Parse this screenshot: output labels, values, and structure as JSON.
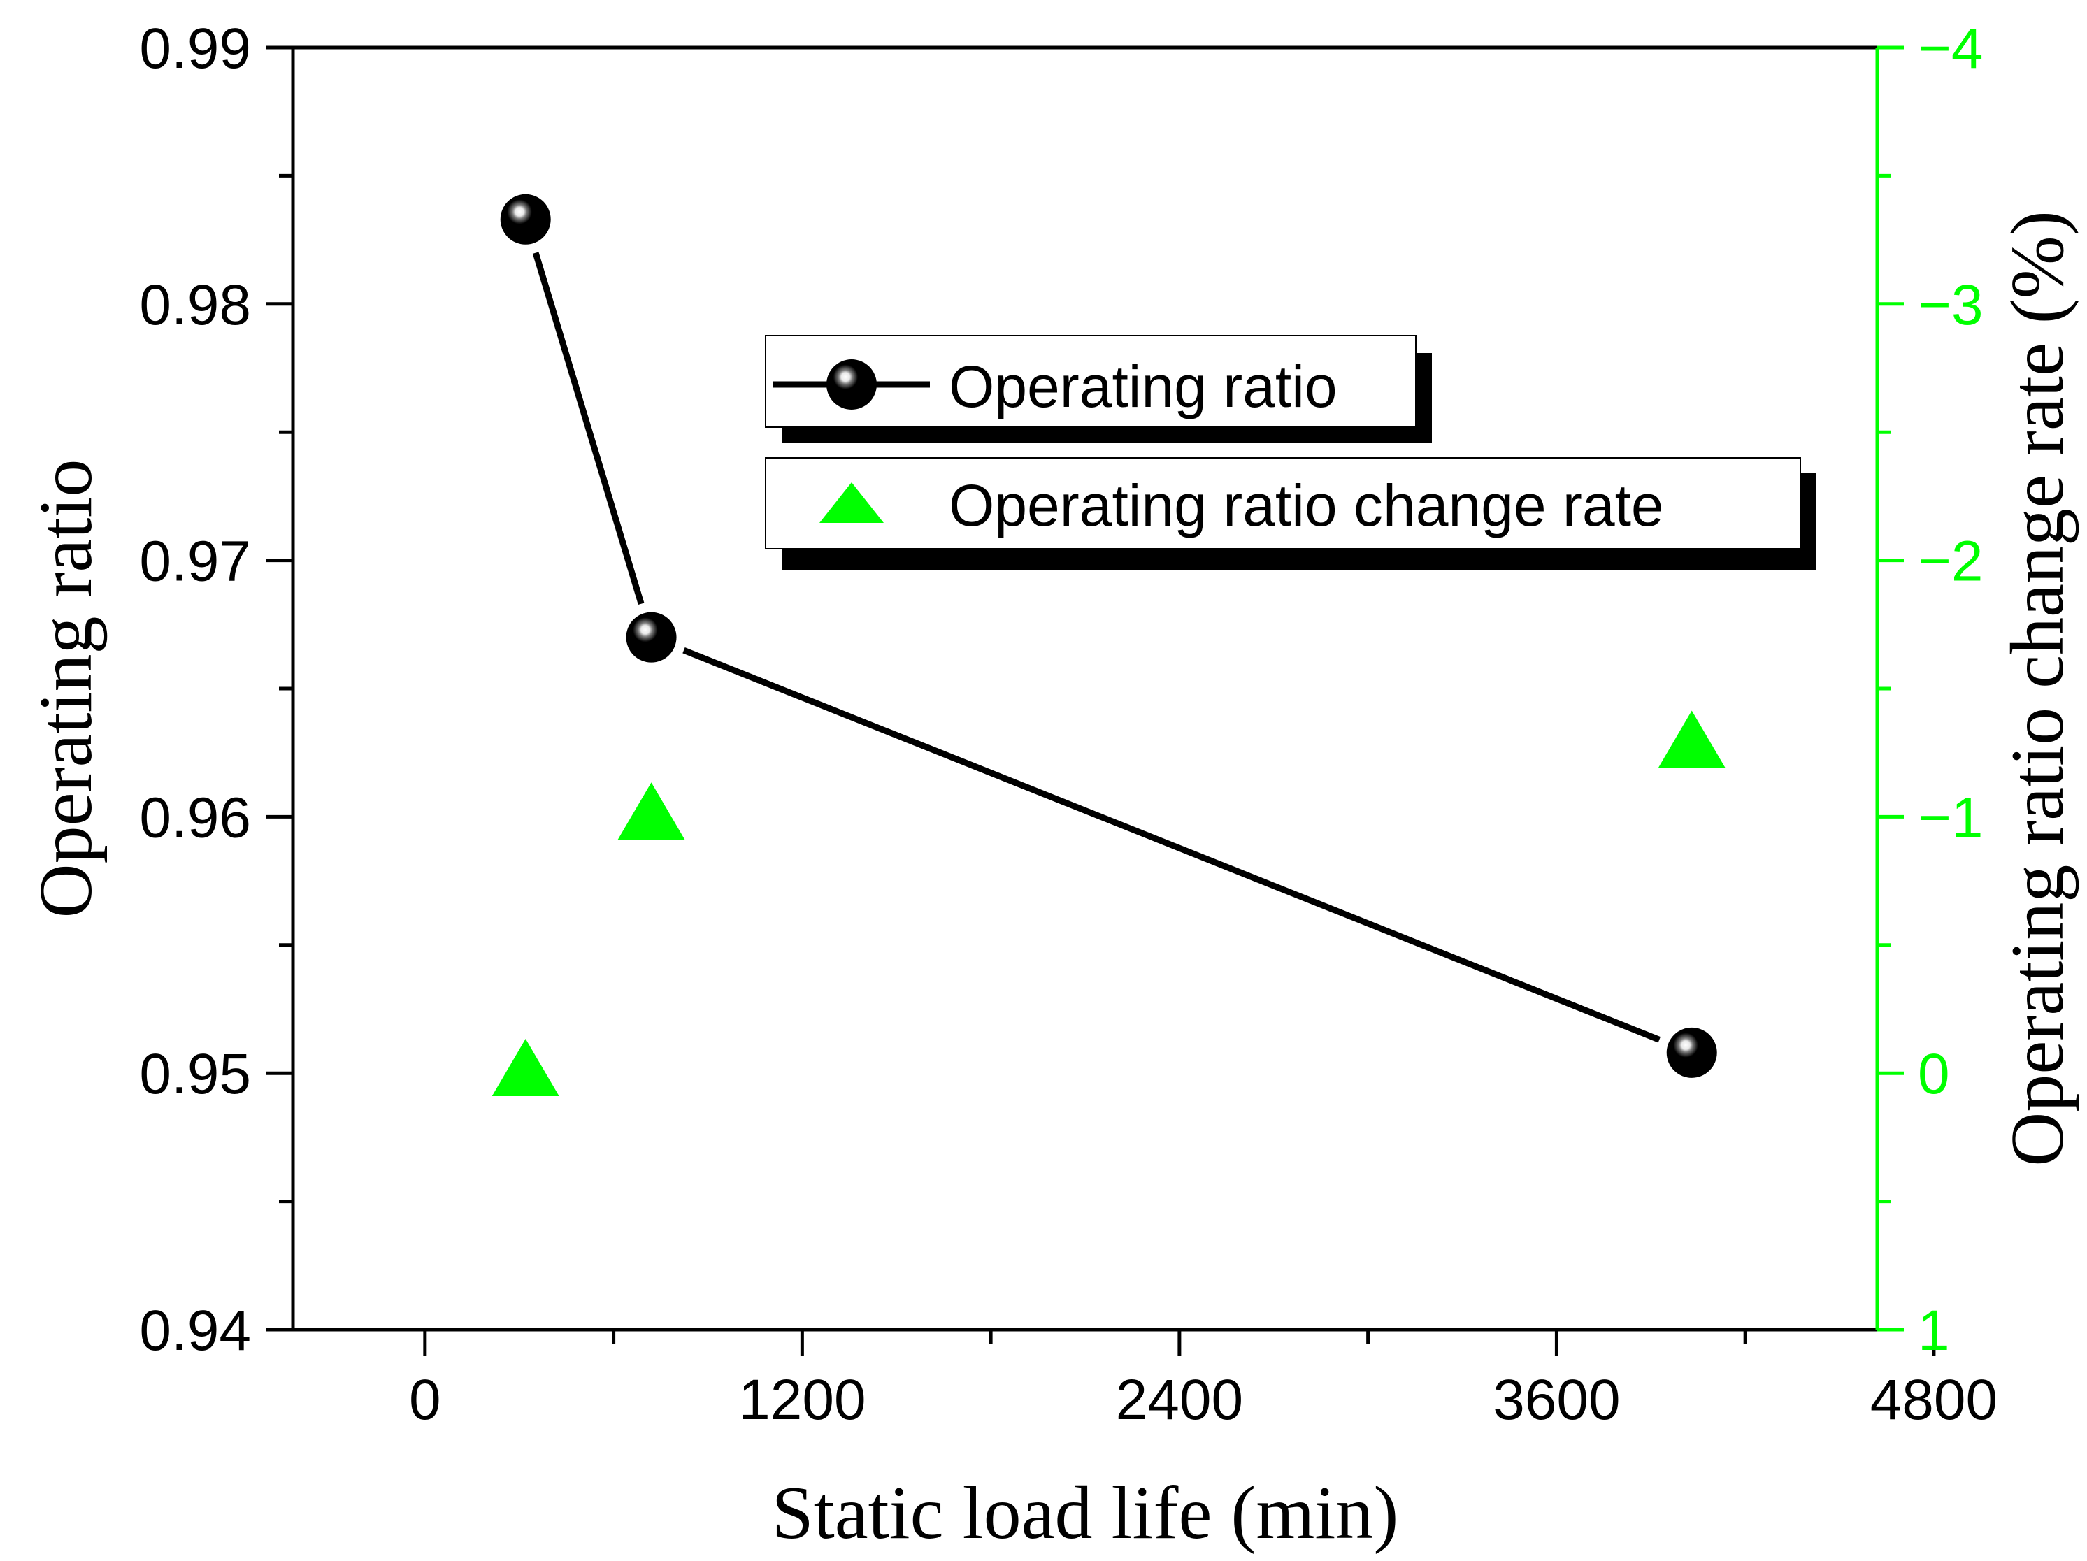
{
  "colors": {
    "axis": "#000000",
    "primary_series": "#000000",
    "secondary_series": "#00ff00",
    "secondary_axis": "#00ff00",
    "background": "#ffffff"
  },
  "chart_data": {
    "type": "line",
    "title": "",
    "xlabel": "Static load life (min)",
    "ylabel": "Operating ratio",
    "y2label": "Operating ratio change rate (%)",
    "xlim": [
      -420,
      4620
    ],
    "ylim": [
      0.94,
      0.99
    ],
    "y2lim": [
      1,
      -4
    ],
    "xticks": [
      0,
      1200,
      2400,
      3600,
      4800
    ],
    "xtick_labels": [
      "0",
      "1200",
      "2400",
      "3600",
      "4800"
    ],
    "yticks": [
      0.94,
      0.95,
      0.96,
      0.97,
      0.98,
      0.99
    ],
    "ytick_labels": [
      "0.94",
      "0.95",
      "0.96",
      "0.97",
      "0.98",
      "0.99"
    ],
    "y2ticks": [
      1,
      0,
      -1,
      -2,
      -3,
      -4
    ],
    "y2tick_labels": [
      "1",
      "0",
      "−1",
      "−2",
      "−3",
      "−4"
    ],
    "series": [
      {
        "name": "Operating ratio",
        "axis": "left",
        "marker": "sphere",
        "line": true,
        "x": [
          320,
          720,
          4030
        ],
        "y": [
          0.9833,
          0.967,
          0.9508
        ]
      },
      {
        "name": "Operating ratio change rate",
        "axis": "right",
        "marker": "triangle",
        "line": false,
        "x": [
          320,
          720,
          4030
        ],
        "y": [
          0,
          -1.0,
          -1.28
        ]
      }
    ],
    "legend_position": "center-top"
  }
}
